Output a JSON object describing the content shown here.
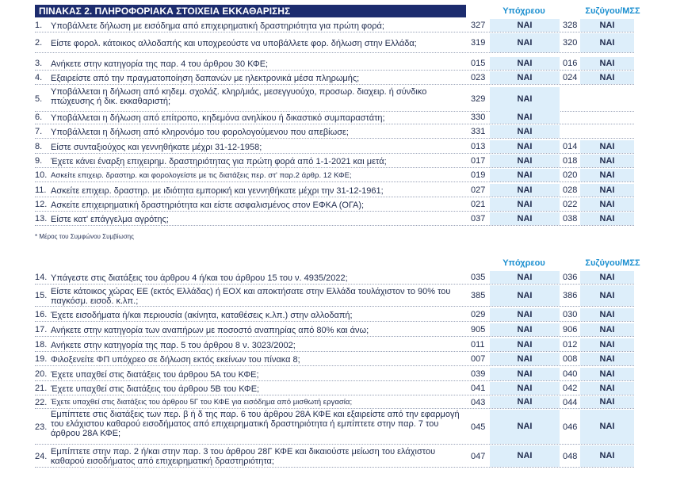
{
  "table": {
    "title": "ΠΙΝΑΚΑΣ 2. ΠΛΗΡΟΦΟΡΙΑΚΑ ΣΤΟΙΧΕΙΑ ΕΚΚΑΘΑΡΙΣΗΣ",
    "col_taxpayer": "Υπόχρεου",
    "col_spouse": "Συζύγου/ΜΣΣ",
    "footnote": "* Μέρος του Συμφώνου Συμβίωσης"
  },
  "section1": [
    {
      "num": "1.",
      "label": "Υποβάλλετε δήλωση με εισόδημα από επιχειρηματική δραστηριότητα για πρώτη φορά;",
      "code1": "327",
      "val1": "ΝΑΙ",
      "code2": "328",
      "val2": "ΝΑΙ"
    },
    {
      "num": "2.",
      "label": "Είστε φορολ. κάτοικος αλλοδαπής και υποχρεούστε να υποβάλλετε φορ. δήλωση στην Ελλάδα;",
      "code1": "319",
      "val1": "ΝΑΙ",
      "code2": "320",
      "val2": "ΝΑΙ"
    },
    {
      "num": "3.",
      "label": "Ανήκετε στην κατηγορία της παρ. 4 του άρθρου 30 ΚΦΕ;",
      "code1": "015",
      "val1": "ΝΑΙ",
      "code2": "016",
      "val2": "ΝΑΙ"
    },
    {
      "num": "4.",
      "label": "Εξαιρείστε από την πραγματοποίηση δαπανών με ηλεκτρονικά μέσα πληρωμής;",
      "code1": "023",
      "val1": "ΝΑΙ",
      "code2": "024",
      "val2": "ΝΑΙ"
    },
    {
      "num": "5.",
      "label": "Υποβάλλεται η δήλωση από κηδεμ. σχολάζ. κληρ/μιάς, μεσεγγυούχο, προσωρ. διαχειρ. ή σύνδικο πτώχευσης ή δικ. εκκαθαριστή;",
      "code1": "329",
      "val1": "ΝΑΙ",
      "code2": "",
      "val2": ""
    },
    {
      "num": "6.",
      "label": "Υποβάλλεται η δήλωση από επίτροπο, κηδεμόνα ανηλίκου ή δικαστικό συμπαραστάτη;",
      "code1": "330",
      "val1": "ΝΑΙ",
      "code2": "",
      "val2": ""
    },
    {
      "num": "7.",
      "label": "Υποβάλλεται η δήλωση από κληρονόμο του φορολογούμενου που απεβίωσε;",
      "code1": "331",
      "val1": "ΝΑΙ",
      "code2": "",
      "val2": ""
    },
    {
      "num": "8.",
      "label": "Είστε συνταξιούχος και γεννηθήκατε μέχρι 31-12-1958;",
      "code1": "013",
      "val1": "ΝΑΙ",
      "code2": "014",
      "val2": "ΝΑΙ"
    },
    {
      "num": "9.",
      "label": "Έχετε κάνει έναρξη επιχειρημ. δραστηριότητας για πρώτη φορά από 1-1-2021 και μετά;",
      "code1": "017",
      "val1": "ΝΑΙ",
      "code2": "018",
      "val2": "ΝΑΙ"
    },
    {
      "num": "10.",
      "label": "Ασκείτε επιχειρ. δραστηρ. και φορολογείστε με τις διατάξεις περ. στ' παρ.2 άρθρ. 12 ΚΦΕ;",
      "code1": "019",
      "val1": "ΝΑΙ",
      "code2": "020",
      "val2": "ΝΑΙ",
      "small": true
    },
    {
      "num": "11.",
      "label": "Ασκείτε επιχειρ. δραστηρ. με ιδιότητα εμπορική και γεννηθήκατε μέχρι την 31-12-1961;",
      "code1": "027",
      "val1": "ΝΑΙ",
      "code2": "028",
      "val2": "ΝΑΙ"
    },
    {
      "num": "12.",
      "label": "Ασκείτε επιχειρηματική δραστηριότητα και είστε ασφαλισμένος στον ΕΦΚΑ (ΟΓΑ);",
      "code1": "021",
      "val1": "ΝΑΙ",
      "code2": "022",
      "val2": "ΝΑΙ"
    },
    {
      "num": "13.",
      "label": "Είστε κατ' επάγγελμα αγρότης;",
      "code1": "037",
      "val1": "ΝΑΙ",
      "code2": "038",
      "val2": "ΝΑΙ"
    }
  ],
  "section2": [
    {
      "num": "14.",
      "label": "Υπάγεστε στις διατάξεις του άρθρου 4 ή/και του άρθρου 15 του ν. 4935/2022;",
      "code1": "035",
      "val1": "ΝΑΙ",
      "code2": "036",
      "val2": "ΝΑΙ"
    },
    {
      "num": "15.",
      "label": "Είστε κάτοικος χώρας ΕΕ (εκτός Ελλάδας) ή ΕΟΧ και αποκτήσατε στην Ελλάδα τουλάχιστον το 90% του παγκόσμ. εισοδ. κ.λπ.;",
      "code1": "385",
      "val1": "ΝΑΙ",
      "code2": "386",
      "val2": "ΝΑΙ"
    },
    {
      "num": "16.",
      "label": "Έχετε εισοδήματα ή/και περιουσία (ακίνητα, καταθέσεις κ.λπ.) στην αλλοδαπή;",
      "code1": "029",
      "val1": "ΝΑΙ",
      "code2": "030",
      "val2": "ΝΑΙ"
    },
    {
      "num": "17.",
      "label": "Ανήκετε στην κατηγορία των αναπήρων με ποσοστό αναπηρίας από 80% και άνω;",
      "code1": "905",
      "val1": "ΝΑΙ",
      "code2": "906",
      "val2": "ΝΑΙ"
    },
    {
      "num": "18.",
      "label": "Ανήκετε στην κατηγορία της παρ. 5 του άρθρου 8 ν. 3023/2002;",
      "code1": "011",
      "val1": "ΝΑΙ",
      "code2": "012",
      "val2": "ΝΑΙ"
    },
    {
      "num": "19.",
      "label": "Φιλοξενείτε ΦΠ υπόχρεο σε δήλωση εκτός εκείνων του πίνακα 8;",
      "code1": "007",
      "val1": "ΝΑΙ",
      "code2": "008",
      "val2": "ΝΑΙ"
    },
    {
      "num": "20.",
      "label": "Έχετε υπαχθεί στις διατάξεις του άρθρου 5Α του ΚΦΕ;",
      "code1": "039",
      "val1": "ΝΑΙ",
      "code2": "040",
      "val2": "ΝΑΙ"
    },
    {
      "num": "21.",
      "label": "Έχετε υπαχθεί στις διατάξεις του άρθρου 5Β του ΚΦΕ;",
      "code1": "041",
      "val1": "ΝΑΙ",
      "code2": "042",
      "val2": "ΝΑΙ"
    },
    {
      "num": "22.",
      "label": "Έχετε υπαχθεί στις διατάξεις του άρθρου 5Γ του ΚΦΕ για εισόδημα από μισθωτή εργασία;",
      "code1": "043",
      "val1": "ΝΑΙ",
      "code2": "044",
      "val2": "ΝΑΙ",
      "small": true
    },
    {
      "num": "23.",
      "label": "Εμπίπτετε στις διατάξεις των περ. β ή δ της παρ. 6 του άρθρου 28Α ΚΦΕ και εξαιρείστε από την εφαρμογή του ελάχιστου καθαρού εισοδήματος από επιχειρηματική δραστηριότητα ή εμπίπτετε στην παρ. 7 του άρθρου 28Α ΚΦΕ;",
      "code1": "045",
      "val1": "ΝΑΙ",
      "code2": "046",
      "val2": "ΝΑΙ"
    },
    {
      "num": "24.",
      "label": "Εμπίπτετε στην παρ. 2 ή/και στην παρ. 3 του άρθρου 28Γ ΚΦΕ και δικαιούστε μείωση του ελάχιστου καθαρού εισοδήματος από επιχειρηματική δραστηριότητα;",
      "code1": "047",
      "val1": "ΝΑΙ",
      "code2": "048",
      "val2": "ΝΑΙ"
    }
  ]
}
